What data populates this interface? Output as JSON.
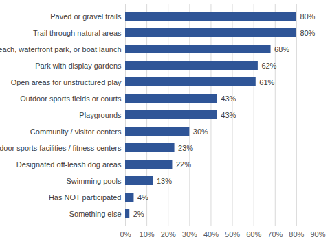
{
  "chart_data": {
    "type": "bar",
    "orientation": "horizontal",
    "categories": [
      "Paved or gravel trails",
      "Trail through natural areas",
      "Beach, waterfront park, or boat launch",
      "Park with display gardens",
      "Open areas for unstructured play",
      "Outdoor sports fields or courts",
      "Playgrounds",
      "Community / visitor centers",
      "Indoor sports facilities / fitness centers",
      "Designated off-leash dog areas",
      "Swimming pools",
      "Has NOT participated",
      "Something else"
    ],
    "values": [
      80,
      80,
      68,
      62,
      61,
      43,
      43,
      30,
      23,
      22,
      13,
      4,
      2
    ],
    "value_labels": [
      "80%",
      "80%",
      "68%",
      "62%",
      "61%",
      "43%",
      "43%",
      "30%",
      "23%",
      "22%",
      "13%",
      "4%",
      "2%"
    ],
    "color": "#2f5597",
    "xlim": [
      0,
      90
    ],
    "xticks": [
      {
        "value": 0,
        "label": "0%"
      },
      {
        "value": 10,
        "label": "10%"
      },
      {
        "value": 20,
        "label": "20%"
      },
      {
        "value": 30,
        "label": "30%"
      },
      {
        "value": 40,
        "label": "40%"
      },
      {
        "value": 50,
        "label": "50%"
      },
      {
        "value": 60,
        "label": "60%"
      },
      {
        "value": 70,
        "label": "70%"
      },
      {
        "value": 80,
        "label": "80%"
      },
      {
        "value": 90,
        "label": "90%"
      }
    ],
    "grid": true,
    "data_labels": true
  }
}
